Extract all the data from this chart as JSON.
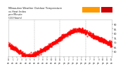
{
  "title_left": "Milwaukee Weather Outdoor Temperature\nvs Heat Index\nper Minute\n(24 Hours)",
  "background_color": "#ffffff",
  "plot_bg_color": "#ffffff",
  "dot_color": "#ff0000",
  "marker_size": 0.9,
  "legend_orange": "#ff9900",
  "legend_red": "#cc0000",
  "ylim": [
    55,
    95
  ],
  "yticks": [
    60,
    65,
    70,
    75,
    80,
    85,
    90
  ],
  "tick_color": "#333333",
  "grid_color": "#aaaaaa",
  "num_points": 1440,
  "title_color": "#222222",
  "title_fontsize": 2.6,
  "tick_fontsize": 2.5,
  "xtick_fontsize": 1.9
}
